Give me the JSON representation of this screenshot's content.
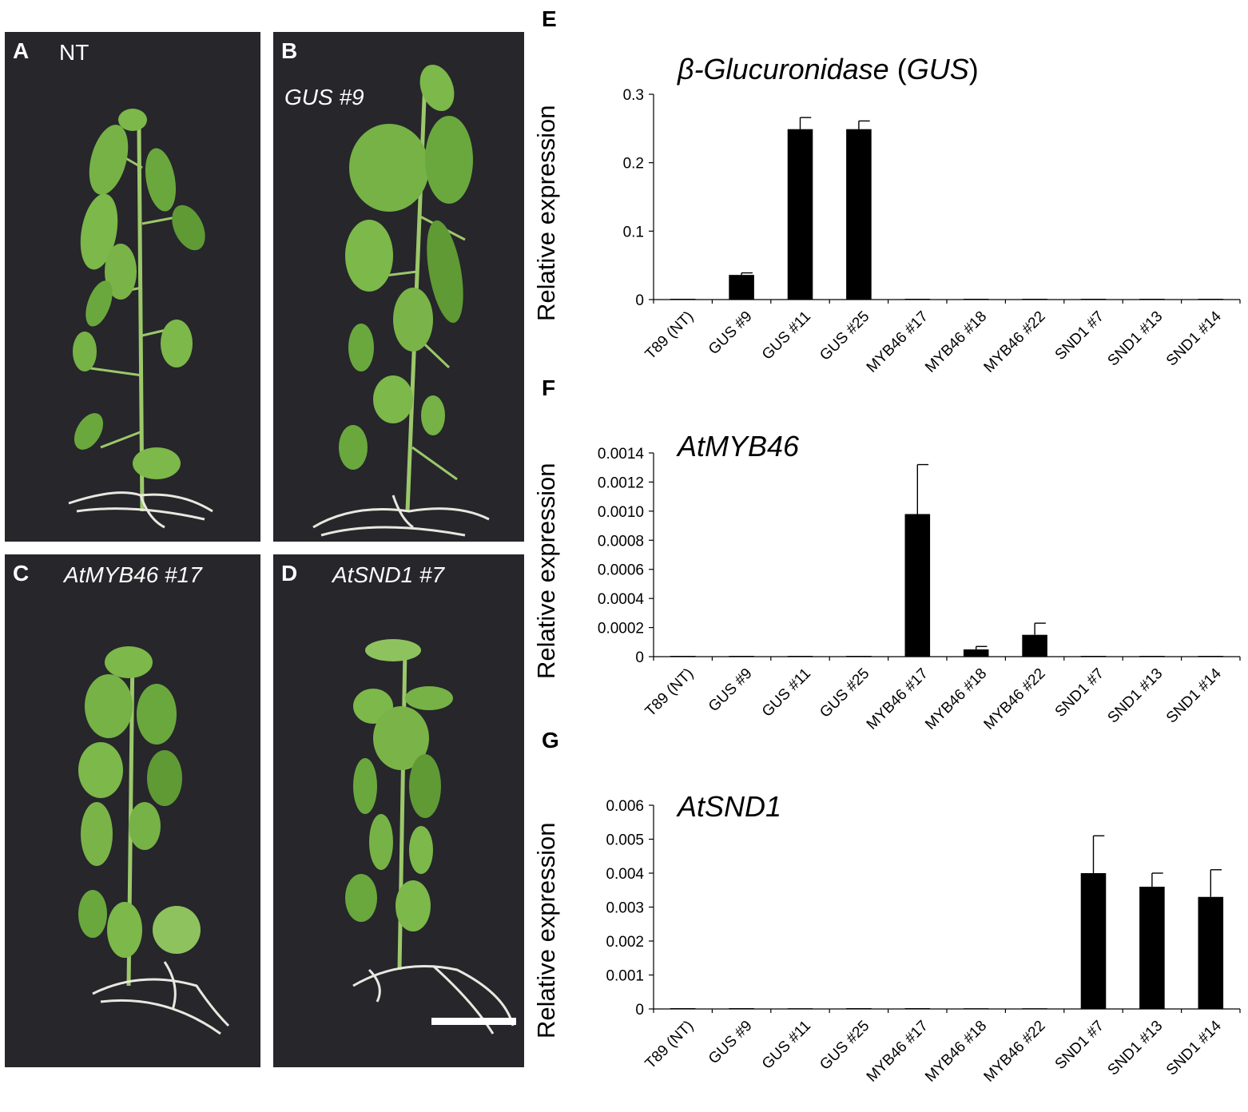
{
  "panels": [
    {
      "letter": "A",
      "label": "NT"
    },
    {
      "letter": "B",
      "label": "GUS #9"
    },
    {
      "letter": "C",
      "label": "AtMYB46 #17"
    },
    {
      "letter": "D",
      "label": "AtSND1 #7"
    }
  ],
  "colors": {
    "bar": "#000000",
    "photo_bg": "#26262b",
    "leaf": "#7cb84a",
    "leaf_dark": "#5f9a35",
    "root": "#e8e8e0"
  },
  "chart_data": [
    {
      "letter": "E",
      "type": "bar",
      "title_main": "β-Glucuronidase",
      "title_paren_open": " (",
      "title_gene": "GUS",
      "title_paren_close": ")",
      "ylabel": "Relative expression",
      "ylim": [
        0,
        0.3
      ],
      "yticks": [
        "0",
        "0.1",
        "0.2",
        "0.3"
      ],
      "ytick_values": [
        0,
        0.1,
        0.2,
        0.3
      ],
      "categories": [
        "T89 (NT)",
        "GUS #9",
        "GUS #11",
        "GUS #25",
        "MYB46 #17",
        "MYB46 #18",
        "MYB46 #22",
        "SND1 #7",
        "SND1 #13",
        "SND1 #14"
      ],
      "values": [
        0,
        0.036,
        0.249,
        0.249,
        0,
        0,
        0,
        0,
        0,
        0
      ],
      "errors": [
        0,
        0.003,
        0.017,
        0.012,
        0,
        0,
        0,
        0,
        0,
        0
      ]
    },
    {
      "letter": "F",
      "type": "bar",
      "title": "AtMYB46",
      "ylabel": "Relative expression",
      "ylim": [
        0,
        0.0014
      ],
      "yticks": [
        "0",
        "0.0002",
        "0.0004",
        "0.0006",
        "0.0008",
        "0.0010",
        "0.0012",
        "0.0014"
      ],
      "ytick_values": [
        0,
        0.0002,
        0.0004,
        0.0006,
        0.0008,
        0.001,
        0.0012,
        0.0014
      ],
      "categories": [
        "T89 (NT)",
        "GUS #9",
        "GUS #11",
        "GUS #25",
        "MYB46 #17",
        "MYB46 #18",
        "MYB46 #22",
        "SND1 #7",
        "SND1 #13",
        "SND1 #14"
      ],
      "values": [
        0,
        0,
        0,
        0,
        0.00098,
        5e-05,
        0.00015,
        0,
        0,
        0
      ],
      "errors": [
        0,
        0,
        0,
        0,
        0.00034,
        2e-05,
        8e-05,
        0,
        0,
        0
      ]
    },
    {
      "letter": "G",
      "type": "bar",
      "title": "AtSND1",
      "ylabel": "Relative expression",
      "ylim": [
        0,
        0.006
      ],
      "yticks": [
        "0",
        "0.001",
        "0.002",
        "0.003",
        "0.004",
        "0.005",
        "0.006"
      ],
      "ytick_values": [
        0,
        0.001,
        0.002,
        0.003,
        0.004,
        0.005,
        0.006
      ],
      "categories": [
        "T89 (NT)",
        "GUS #9",
        "GUS #11",
        "GUS #25",
        "MYB46 #17",
        "MYB46 #18",
        "MYB46 #22",
        "SND1 #7",
        "SND1 #13",
        "SND1 #14"
      ],
      "values": [
        0,
        0,
        2e-05,
        0,
        0,
        2e-05,
        2e-05,
        0.004,
        0.0036,
        0.0033
      ],
      "errors": [
        0,
        0,
        0,
        0,
        0,
        0,
        0,
        0.0011,
        0.0004,
        0.0008
      ]
    }
  ]
}
